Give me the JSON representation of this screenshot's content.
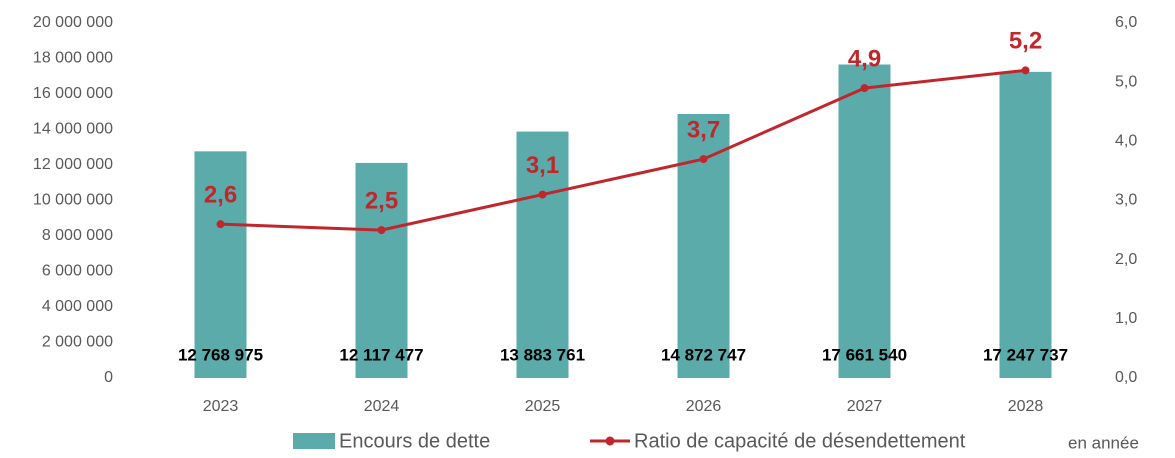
{
  "chart_data": {
    "type": "bar_line",
    "categories": [
      "2023",
      "2024",
      "2025",
      "2026",
      "2027",
      "2028"
    ],
    "series": [
      {
        "name": "Encours de dette",
        "type": "bar",
        "color": "#5aabaa",
        "values": [
          12768975,
          12117477,
          13883761,
          14872747,
          17661540,
          17247737
        ],
        "value_labels": [
          "12 768 975",
          "12 117 477",
          "13 883 761",
          "14 872 747",
          "17 661 540",
          "17 247 737"
        ]
      },
      {
        "name": "Ratio de capacité de désendettement",
        "type": "line",
        "axis": "y2",
        "color": "#c0272d",
        "values": [
          2.6,
          2.5,
          3.1,
          3.7,
          4.9,
          5.2
        ],
        "value_labels": [
          "2,6",
          "2,5",
          "3,1",
          "3,7",
          "4,9",
          "5,2"
        ]
      }
    ],
    "annotation": "en année",
    "ylim": [
      0,
      20000000
    ],
    "yticks": [
      0,
      {
        "value": 2000000,
        "label": "2 000 000"
      },
      {
        "value": 4000000,
        "label": "4 000 000"
      },
      {
        "value": 6000000,
        "label": "6 000 000"
      },
      {
        "value": 8000000,
        "label": "8 000 000"
      },
      {
        "value": 10000000,
        "label": "10 000 000"
      },
      {
        "value": 12000000,
        "label": "12 000 000"
      },
      {
        "value": 14000000,
        "label": "14 000 000"
      },
      {
        "value": 16000000,
        "label": "16 000 000"
      },
      {
        "value": 18000000,
        "label": "18 000 000"
      },
      {
        "value": 20000000,
        "label": "20 000 000"
      }
    ],
    "y2lim": [
      0,
      6
    ],
    "y2ticks": [
      {
        "value": 0,
        "label": "0,0"
      },
      {
        "value": 1,
        "label": "1,0"
      },
      {
        "value": 2,
        "label": "2,0"
      },
      {
        "value": 3,
        "label": "3,0"
      },
      {
        "value": 4,
        "label": "4,0"
      },
      {
        "value": 5,
        "label": "5,0"
      },
      {
        "value": 6,
        "label": "6,0"
      }
    ],
    "grid": false
  }
}
